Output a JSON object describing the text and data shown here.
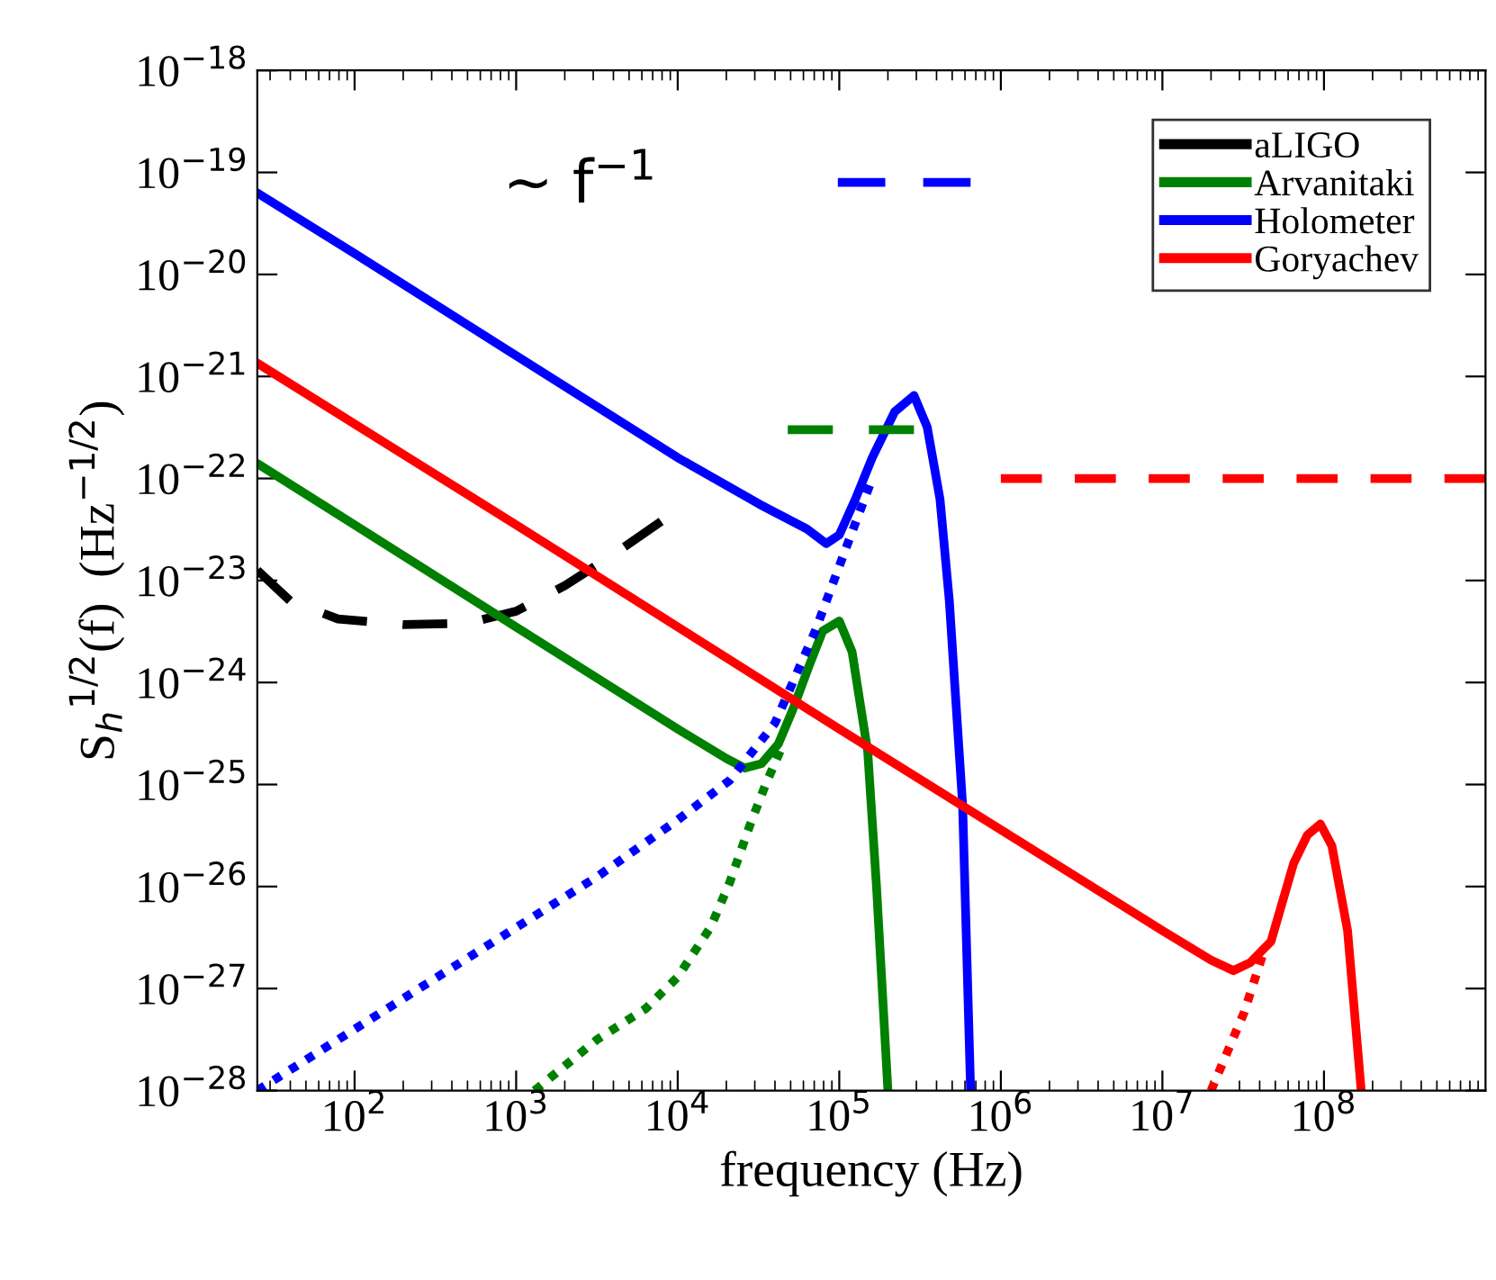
{
  "chart_data": {
    "type": "line",
    "xlabel": "frequency (Hz)",
    "ylabel": "S$_{h}$$^{1/2}$(f)  (Hz$^{−1/2}$)",
    "log": "xy",
    "xlim": [
      25,
      1000000000
    ],
    "ylim": [
      1e-28,
      1e-18
    ],
    "xticks": [
      {
        "value": 100,
        "label": "10$^{2}$"
      },
      {
        "value": 1000,
        "label": "10$^{3}$"
      },
      {
        "value": 10000,
        "label": "10$^{4}$"
      },
      {
        "value": 100000,
        "label": "10$^{5}$"
      },
      {
        "value": 1000000,
        "label": "10$^{6}$"
      },
      {
        "value": 10000000,
        "label": "10$^{7}$"
      },
      {
        "value": 100000000,
        "label": "10$^{8}$"
      }
    ],
    "yticks": [
      {
        "value": 1e-28,
        "label": "10$^{−28}$"
      },
      {
        "value": 1e-27,
        "label": "10$^{−27}$"
      },
      {
        "value": 1e-26,
        "label": "10$^{−26}$"
      },
      {
        "value": 1e-25,
        "label": "10$^{−25}$"
      },
      {
        "value": 1e-24,
        "label": "10$^{−24}$"
      },
      {
        "value": 1e-23,
        "label": "10$^{−23}$"
      },
      {
        "value": 1e-22,
        "label": "10$^{−22}$"
      },
      {
        "value": 1e-21,
        "label": "10$^{−21}$"
      },
      {
        "value": 1e-20,
        "label": "10$^{−20}$"
      },
      {
        "value": 1e-19,
        "label": "10$^{−19}$"
      },
      {
        "value": 1e-18,
        "label": "10$^{−18}$"
      }
    ],
    "grid": false,
    "legend": "top right",
    "marker": "none",
    "annotations": [
      "∼ f$^{−1}$"
    ],
    "series": [
      {
        "name": "aLIGO",
        "color": "#000000",
        "line_style": "dashed",
        "x": [
          25,
          40,
          79,
          200,
          500,
          1000,
          2000,
          4000,
          7900
        ],
        "values": [
          1.26e-23,
          6.3e-24,
          4.2e-24,
          3.7e-24,
          3.8e-24,
          5e-24,
          8.9e-24,
          1.8e-23,
          3.8e-23
        ]
      },
      {
        "name": "Arvanitaki",
        "color": "#008000",
        "line_style": "solid",
        "x": [
          25,
          100,
          1000,
          10000,
          20000,
          26000,
          33000,
          42000,
          52000,
          65000,
          79000,
          100000,
          120000,
          150000,
          170000,
          200000
        ],
        "values": [
          1.4e-22,
          3.5e-23,
          3.5e-24,
          3.5e-25,
          1.8e-25,
          1.45e-25,
          1.6e-25,
          2.5e-25,
          5.6e-25,
          1.45e-24,
          3.2e-24,
          4e-24,
          2e-24,
          2.1e-25,
          1e-26,
          1e-28
        ]
      },
      {
        "name": "Holometer",
        "color": "#0000ff",
        "line_style": "solid",
        "x": [
          25,
          100,
          1000,
          10000,
          32000,
          63000,
          83000,
          100000,
          126000,
          160000,
          220000,
          290000,
          350000,
          420000,
          480000,
          580000,
          650000
        ],
        "values": [
          6.3e-20,
          1.6e-20,
          1.6e-21,
          1.6e-22,
          5.6e-23,
          3.2e-23,
          2.3e-23,
          2.8e-23,
          6.3e-23,
          1.6e-22,
          4.5e-22,
          6.5e-22,
          3.2e-22,
          6.3e-23,
          6.3e-24,
          6.3e-26,
          1e-28
        ]
      },
      {
        "name": "Goryachev",
        "color": "#ff0000",
        "line_style": "solid",
        "x": [
          25,
          1000,
          100000,
          10000000,
          20000000,
          27500000,
          35000000,
          47000000,
          65000000,
          79000000,
          95000000,
          112000000,
          140000000,
          170000000
        ],
        "values": [
          1.35e-21,
          3.5e-23,
          3.5e-25,
          3.7e-27,
          1.9e-27,
          1.5e-27,
          1.8e-27,
          2.9e-27,
          1.7e-26,
          3.2e-26,
          4.1e-26,
          2.5e-26,
          3.7e-27,
          1e-28
        ]
      },
      {
        "color": "#0000ff",
        "line_style": "dotted",
        "x": [
          25,
          316,
          3200,
          10000,
          21000,
          40000,
          71000,
          115000,
          160000
        ],
        "values": [
          1e-28,
          1.26e-27,
          1.26e-26,
          4.5e-26,
          1.1e-25,
          4e-25,
          3.2e-24,
          2.5e-23,
          1e-22
        ]
      },
      {
        "color": "#008000",
        "line_style": "dotted",
        "x": [
          1300,
          3200,
          6300,
          10000,
          16000,
          21000,
          28000,
          35000,
          45000
        ],
        "values": [
          1e-28,
          3.2e-28,
          6.3e-28,
          1.3e-27,
          4e-27,
          1.1e-26,
          4e-26,
          1e-25,
          2.5e-25
        ]
      },
      {
        "color": "#ff0000",
        "line_style": "dotted",
        "x": [
          20000000,
          32000000,
          42000000
        ],
        "values": [
          1e-28,
          5.8e-28,
          2.2e-27
        ]
      },
      {
        "color": "#0000ff",
        "line_style": "dashed",
        "x": [
          98000,
          650000
        ],
        "values": [
          8e-20,
          8e-20
        ]
      },
      {
        "color": "#008000",
        "line_style": "dashed",
        "x": [
          48000,
          290000
        ],
        "values": [
          3e-22,
          3e-22
        ]
      },
      {
        "color": "#ff0000",
        "line_style": "dashed",
        "x": [
          1000000,
          1000000000
        ],
        "values": [
          1e-22,
          1e-22
        ]
      }
    ]
  }
}
